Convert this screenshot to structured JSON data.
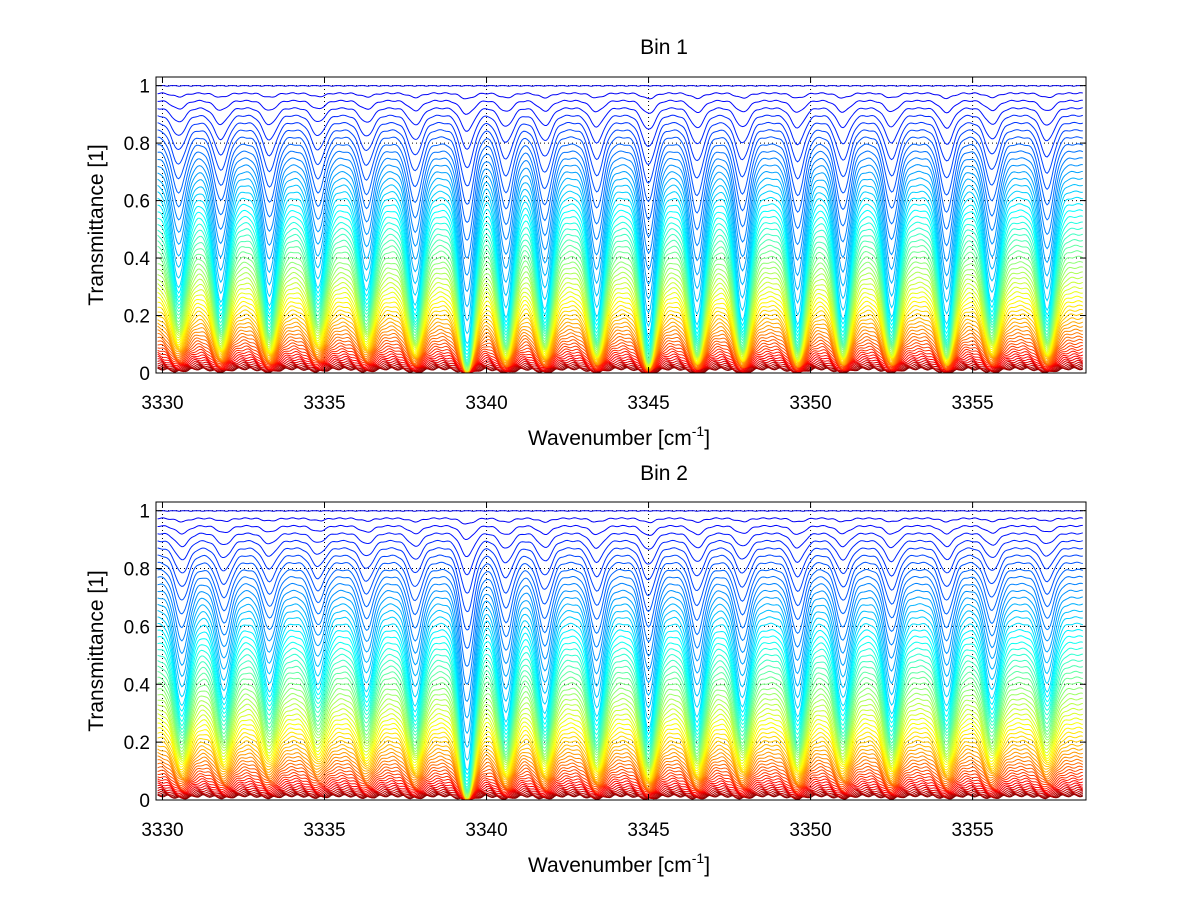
{
  "chart_data": [
    {
      "type": "line",
      "title": "Bin 1",
      "xlabel": "Wavenumber [cm",
      "xlabel_sup": "-1",
      "xlabel_end": "]",
      "ylabel": "Transmittance [1]",
      "xlim": [
        3329.8,
        3358.5
      ],
      "ylim": [
        0,
        1.03
      ],
      "xticks": [
        3330,
        3335,
        3340,
        3345,
        3350,
        3355
      ],
      "xtick_labels": [
        "3330",
        "3335",
        "3340",
        "3345",
        "3350",
        "3355"
      ],
      "yticks": [
        0,
        0.2,
        0.4,
        0.6,
        0.8,
        1
      ],
      "ytick_labels": [
        "0",
        "0.2",
        "0.4",
        "0.6",
        "0.8",
        "1"
      ],
      "grid": true,
      "colormap": "jet (red → orange → yellow → cyan → blue)",
      "series_count": 60,
      "baseline_range": [
        0.0,
        1.0
      ],
      "absorption_lines": [
        {
          "x": 3330.5,
          "depth": 0.6
        },
        {
          "x": 3331.8,
          "depth": 0.7
        },
        {
          "x": 3333.3,
          "depth": 0.72
        },
        {
          "x": 3334.8,
          "depth": 0.6
        },
        {
          "x": 3336.3,
          "depth": 0.62
        },
        {
          "x": 3337.8,
          "depth": 0.72
        },
        {
          "x": 3339.4,
          "depth": 0.99
        },
        {
          "x": 3340.6,
          "depth": 0.8
        },
        {
          "x": 3341.8,
          "depth": 0.75
        },
        {
          "x": 3343.4,
          "depth": 0.8
        },
        {
          "x": 3345.0,
          "depth": 0.93
        },
        {
          "x": 3346.5,
          "depth": 0.85
        },
        {
          "x": 3347.9,
          "depth": 0.82
        },
        {
          "x": 3349.6,
          "depth": 0.85
        },
        {
          "x": 3351.0,
          "depth": 0.82
        },
        {
          "x": 3352.5,
          "depth": 0.8
        },
        {
          "x": 3354.2,
          "depth": 0.85
        },
        {
          "x": 3355.6,
          "depth": 0.7
        },
        {
          "x": 3357.3,
          "depth": 0.75
        }
      ]
    },
    {
      "type": "line",
      "title": "Bin 2",
      "xlabel": "Wavenumber [cm",
      "xlabel_sup": "-1",
      "xlabel_end": "]",
      "ylabel": "Transmittance [1]",
      "xlim": [
        3329.8,
        3358.5
      ],
      "ylim": [
        0,
        1.03
      ],
      "xticks": [
        3330,
        3335,
        3340,
        3345,
        3350,
        3355
      ],
      "xtick_labels": [
        "3330",
        "3335",
        "3340",
        "3345",
        "3350",
        "3355"
      ],
      "yticks": [
        0,
        0.2,
        0.4,
        0.6,
        0.8,
        1
      ],
      "ytick_labels": [
        "0",
        "0.2",
        "0.4",
        "0.6",
        "0.8",
        "1"
      ],
      "grid": true,
      "colormap": "jet (red → orange → yellow → cyan → blue)",
      "series_count": 60,
      "baseline_range": [
        0.0,
        1.0
      ],
      "absorption_lines": [
        {
          "x": 3330.6,
          "depth": 0.55
        },
        {
          "x": 3331.9,
          "depth": 0.5
        },
        {
          "x": 3333.3,
          "depth": 0.45
        },
        {
          "x": 3334.8,
          "depth": 0.4
        },
        {
          "x": 3336.3,
          "depth": 0.45
        },
        {
          "x": 3337.8,
          "depth": 0.55
        },
        {
          "x": 3339.4,
          "depth": 0.99
        },
        {
          "x": 3340.6,
          "depth": 0.65
        },
        {
          "x": 3341.8,
          "depth": 0.6
        },
        {
          "x": 3343.4,
          "depth": 0.62
        },
        {
          "x": 3345.0,
          "depth": 0.7
        },
        {
          "x": 3346.5,
          "depth": 0.62
        },
        {
          "x": 3347.9,
          "depth": 0.55
        },
        {
          "x": 3349.6,
          "depth": 0.62
        },
        {
          "x": 3351.0,
          "depth": 0.55
        },
        {
          "x": 3352.5,
          "depth": 0.6
        },
        {
          "x": 3354.2,
          "depth": 0.55
        },
        {
          "x": 3355.6,
          "depth": 0.5
        },
        {
          "x": 3357.3,
          "depth": 0.45
        }
      ]
    }
  ]
}
